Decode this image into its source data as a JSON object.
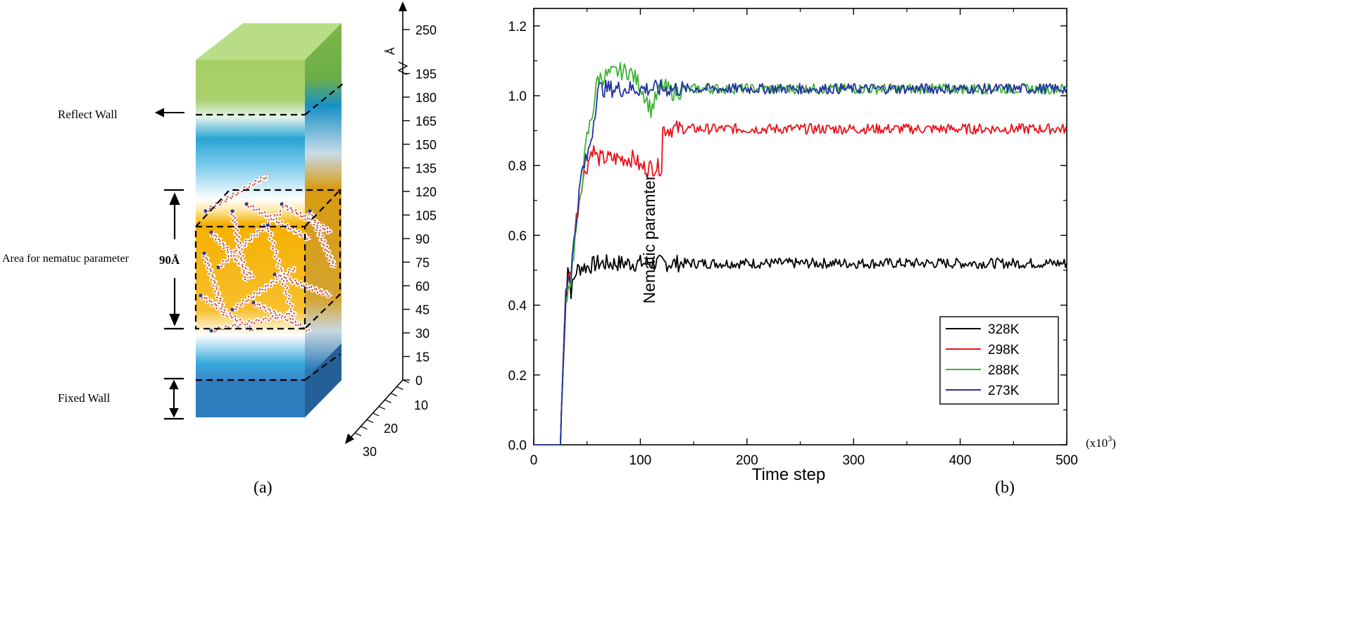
{
  "panel_a": {
    "label": "(a)",
    "annotations": {
      "reflect_wall": "Reflect Wall",
      "area": "Area for nematuc parameter",
      "thickness": "90Å",
      "fixed_wall": "Fixed Wall"
    },
    "z_axis": {
      "unit": "Å",
      "ticks": [
        "0",
        "15",
        "30",
        "45",
        "60",
        "75",
        "90",
        "105",
        "120",
        "135",
        "150",
        "165",
        "180",
        "195",
        "250"
      ]
    },
    "depth_axis": {
      "ticks": [
        "10",
        "20",
        "30"
      ]
    },
    "colors": {
      "top": "#a6d06a",
      "liquid_crystal": "#f5b400",
      "fixed": "#2f7fc1",
      "cyan": "#2aa7d8"
    }
  },
  "panel_b": {
    "label": "(b)",
    "x_multiplier": "(x10",
    "x_multiplier_exp": "3",
    "x_multiplier_close": ")"
  },
  "chart_data": {
    "type": "line",
    "xlabel": "Time step",
    "ylabel": "Nematic paramter",
    "xlim": [
      0,
      500
    ],
    "ylim": [
      0.0,
      1.25
    ],
    "xticks": [
      "0",
      "100",
      "200",
      "300",
      "400",
      "500"
    ],
    "yticks": [
      "0.0",
      "0.2",
      "0.4",
      "0.6",
      "0.8",
      "1.0",
      "1.2"
    ],
    "legend_position": "bottom-right",
    "series": [
      {
        "name": "328K",
        "color": "#000000",
        "x": [
          0,
          25,
          26,
          30,
          32,
          35,
          40,
          45,
          50,
          60,
          80,
          100,
          150,
          200,
          300,
          400,
          500
        ],
        "y": [
          0.0,
          0.0,
          0.1,
          0.4,
          0.52,
          0.44,
          0.5,
          0.51,
          0.51,
          0.52,
          0.52,
          0.52,
          0.52,
          0.52,
          0.52,
          0.52,
          0.52
        ]
      },
      {
        "name": "298K",
        "color": "#e8141c",
        "x": [
          0,
          25,
          26,
          30,
          35,
          40,
          45,
          50,
          55,
          60,
          95,
          100,
          120,
          121,
          150,
          200,
          300,
          400,
          500
        ],
        "y": [
          0.0,
          0.0,
          0.1,
          0.44,
          0.5,
          0.65,
          0.75,
          0.8,
          0.85,
          0.82,
          0.82,
          0.795,
          0.795,
          0.905,
          0.905,
          0.905,
          0.905,
          0.905,
          0.905
        ]
      },
      {
        "name": "288K",
        "color": "#3fb435",
        "x": [
          0,
          25,
          26,
          30,
          35,
          40,
          45,
          50,
          55,
          60,
          70,
          80,
          90,
          100,
          110,
          120,
          130,
          150,
          200,
          300,
          400,
          500
        ],
        "y": [
          0.0,
          0.0,
          0.1,
          0.42,
          0.48,
          0.62,
          0.75,
          0.88,
          0.95,
          1.05,
          1.06,
          1.07,
          1.07,
          1.03,
          0.96,
          1.03,
          1.01,
          1.02,
          1.02,
          1.02,
          1.02,
          1.02
        ]
      },
      {
        "name": "273K",
        "color": "#2232a0",
        "x": [
          0,
          25,
          26,
          30,
          35,
          40,
          45,
          50,
          55,
          60,
          70,
          100,
          150,
          200,
          300,
          400,
          500
        ],
        "y": [
          0.0,
          0.0,
          0.1,
          0.45,
          0.5,
          0.65,
          0.78,
          0.82,
          0.9,
          1.02,
          1.02,
          1.02,
          1.02,
          1.02,
          1.02,
          1.02,
          1.02
        ]
      }
    ]
  }
}
